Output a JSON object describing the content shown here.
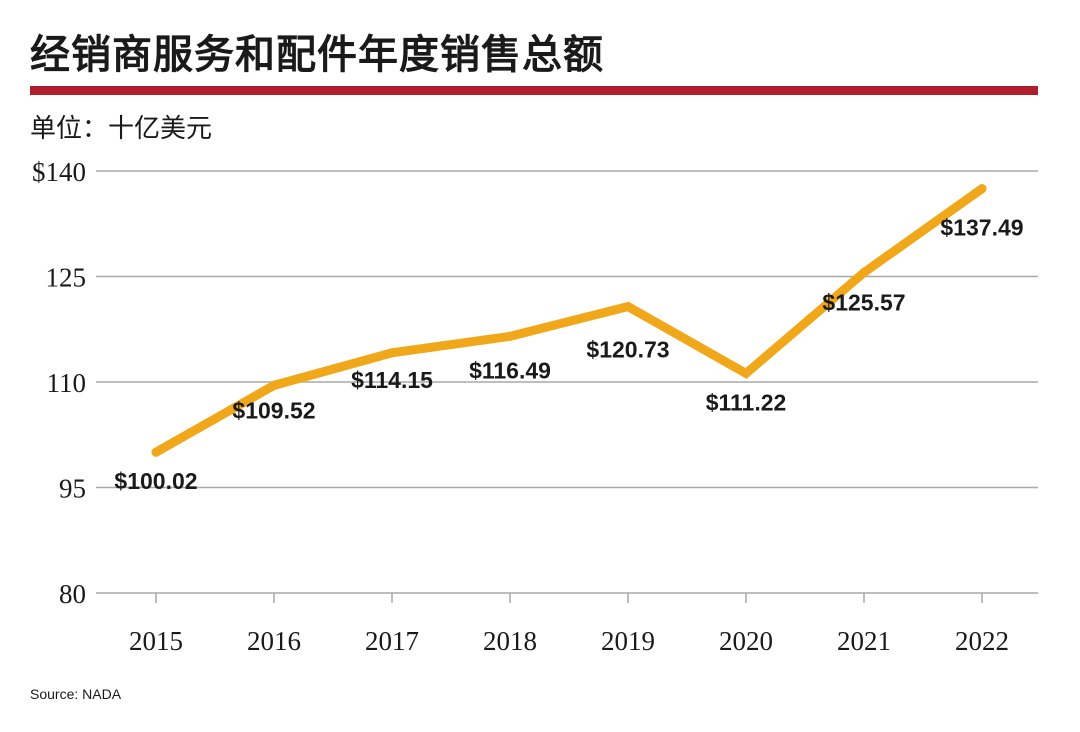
{
  "header": {
    "title": "经销商服务和配件年度销售总额",
    "unit": "单位：十亿美元"
  },
  "source": "Source: NADA",
  "colors": {
    "accent_rule": "#b01e2c",
    "line": "#f0a81a",
    "grid": "#a8a8a8"
  },
  "chart_data": {
    "type": "line",
    "title": "经销商服务和配件年度销售总额",
    "ylabel": "单位：十亿美元",
    "xlabel": "",
    "ylim": [
      80,
      140
    ],
    "y_ticks": [
      "$140",
      "125",
      "110",
      "95",
      "80"
    ],
    "y_tick_values": [
      140,
      125,
      110,
      95,
      80
    ],
    "categories": [
      "2015",
      "2016",
      "2017",
      "2018",
      "2019",
      "2020",
      "2021",
      "2022"
    ],
    "values": [
      100.02,
      109.52,
      114.15,
      116.49,
      120.73,
      111.22,
      125.57,
      137.49
    ],
    "data_labels": [
      "$100.02",
      "$109.52",
      "$114.15",
      "$116.49",
      "$120.73",
      "$111.22",
      "$125.57",
      "$137.49"
    ],
    "grid": true,
    "legend": "none"
  }
}
